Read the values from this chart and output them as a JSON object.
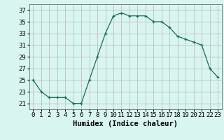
{
  "x": [
    0,
    1,
    2,
    3,
    4,
    5,
    6,
    7,
    8,
    9,
    10,
    11,
    12,
    13,
    14,
    15,
    16,
    17,
    18,
    19,
    20,
    21,
    22,
    23
  ],
  "y": [
    25,
    23,
    22,
    22,
    22,
    21,
    21,
    25,
    29,
    33,
    36,
    36.5,
    36,
    36,
    36,
    35,
    35,
    34,
    32.5,
    32,
    31.5,
    31,
    27,
    25.5
  ],
  "line_color": "#1a6b5a",
  "marker": "+",
  "marker_size": 3.5,
  "bg_color": "#d8f5f0",
  "grid_color": "#b8b8b8",
  "xlabel": "Humidex (Indice chaleur)",
  "xlim": [
    -0.5,
    23.5
  ],
  "ylim": [
    20,
    38
  ],
  "yticks": [
    21,
    23,
    25,
    27,
    29,
    31,
    33,
    35,
    37
  ],
  "xticks": [
    0,
    1,
    2,
    3,
    4,
    5,
    6,
    7,
    8,
    9,
    10,
    11,
    12,
    13,
    14,
    15,
    16,
    17,
    18,
    19,
    20,
    21,
    22,
    23
  ],
  "tick_fontsize": 6.5,
  "xlabel_fontsize": 7.5
}
